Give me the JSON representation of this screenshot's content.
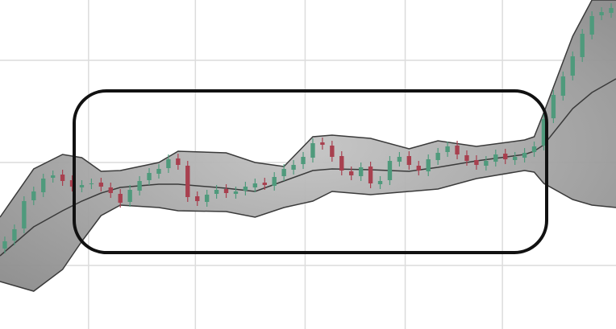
{
  "chart_data": {
    "type": "candlestick",
    "x": [
      0,
      1,
      2,
      3,
      4,
      5,
      6,
      7,
      8,
      9,
      10,
      11,
      12,
      13,
      14,
      15,
      16,
      17,
      18,
      19,
      20,
      21,
      22,
      23,
      24,
      25,
      26,
      27,
      28,
      29,
      30,
      31,
      32,
      33,
      34,
      35,
      36,
      37,
      38,
      39,
      40,
      41,
      42,
      43,
      44,
      45,
      46,
      47,
      48,
      49,
      50,
      51,
      52,
      53,
      54,
      55,
      56,
      57,
      58,
      59,
      60,
      61,
      62,
      63
    ],
    "open": [
      100,
      110,
      125,
      160,
      170,
      188,
      192,
      185,
      176,
      180,
      182,
      176,
      168,
      158,
      172,
      185,
      193,
      200,
      212,
      203,
      165,
      158,
      168,
      174,
      168,
      172,
      176,
      182,
      178,
      190,
      198,
      205,
      213,
      232,
      228,
      215,
      196,
      190,
      202,
      180,
      185,
      208,
      215,
      203,
      196,
      210,
      220,
      228,
      216,
      210,
      203,
      208,
      218,
      210,
      213,
      220,
      228,
      262,
      290,
      315,
      338,
      366,
      390,
      393
    ],
    "high": [
      115,
      130,
      165,
      177,
      193,
      197,
      198,
      191,
      185,
      187,
      188,
      182,
      174,
      179,
      190,
      200,
      205,
      217,
      218,
      209,
      171,
      173,
      179,
      180,
      177,
      183,
      187,
      188,
      195,
      205,
      210,
      220,
      237,
      238,
      234,
      221,
      202,
      207,
      208,
      190,
      215,
      220,
      221,
      209,
      217,
      225,
      233,
      234,
      222,
      216,
      215,
      223,
      224,
      220,
      225,
      233,
      267,
      297,
      320,
      345,
      373,
      395,
      400,
      405
    ],
    "low": [
      94,
      104,
      119,
      154,
      164,
      182,
      178,
      171,
      170,
      174,
      171,
      163,
      151,
      152,
      166,
      179,
      187,
      194,
      198,
      158,
      153,
      152,
      162,
      163,
      162,
      166,
      170,
      173,
      172,
      184,
      192,
      199,
      207,
      223,
      208,
      191,
      185,
      184,
      175,
      174,
      179,
      202,
      198,
      191,
      190,
      204,
      214,
      211,
      203,
      198,
      197,
      202,
      205,
      204,
      207,
      214,
      222,
      256,
      284,
      309,
      332,
      360,
      384,
      387
    ],
    "close": [
      109,
      124,
      159,
      171,
      187,
      191,
      184,
      177,
      179,
      181,
      177,
      169,
      157,
      173,
      184,
      194,
      199,
      211,
      204,
      164,
      159,
      167,
      173,
      169,
      171,
      177,
      181,
      179,
      189,
      199,
      204,
      214,
      231,
      229,
      214,
      197,
      191,
      201,
      181,
      184,
      209,
      214,
      204,
      197,
      211,
      219,
      227,
      217,
      209,
      204,
      209,
      217,
      211,
      214,
      219,
      227,
      261,
      291,
      314,
      339,
      367,
      389,
      394,
      399
    ],
    "up_color": "#4f9a7c",
    "down_color": "#a8404f",
    "bands": {
      "x": [
        -0.5,
        3,
        6,
        8,
        10,
        12,
        16,
        18,
        23,
        26,
        29,
        32,
        34,
        38,
        42,
        45,
        49,
        54,
        55,
        56,
        59,
        61,
        63.5
      ],
      "upper": [
        139,
        199,
        217,
        213,
        196,
        197,
        207,
        221,
        219,
        207,
        202,
        239,
        241,
        237,
        224,
        234,
        227,
        235,
        239,
        269,
        364,
        409,
        409
      ],
      "middle": [
        91,
        127,
        147,
        159,
        169,
        176,
        180,
        180,
        175,
        171,
        184,
        197,
        199,
        198,
        196,
        201,
        209,
        217,
        221,
        229,
        274,
        294,
        311
      ],
      "lower": [
        59,
        47,
        74,
        109,
        141,
        154,
        151,
        147,
        146,
        139,
        151,
        159,
        171,
        167,
        171,
        174,
        187,
        197,
        195,
        181,
        161,
        154,
        151
      ],
      "color": "#9a9a9a"
    },
    "xlim": [
      -0.5,
      63.5
    ],
    "ylim": [
      0,
      409
    ],
    "xticks": [
      8.7,
      19.8,
      31.2,
      41.6,
      51.7
    ],
    "yticks": [
      79,
      207,
      334
    ],
    "grid": true
  }
}
